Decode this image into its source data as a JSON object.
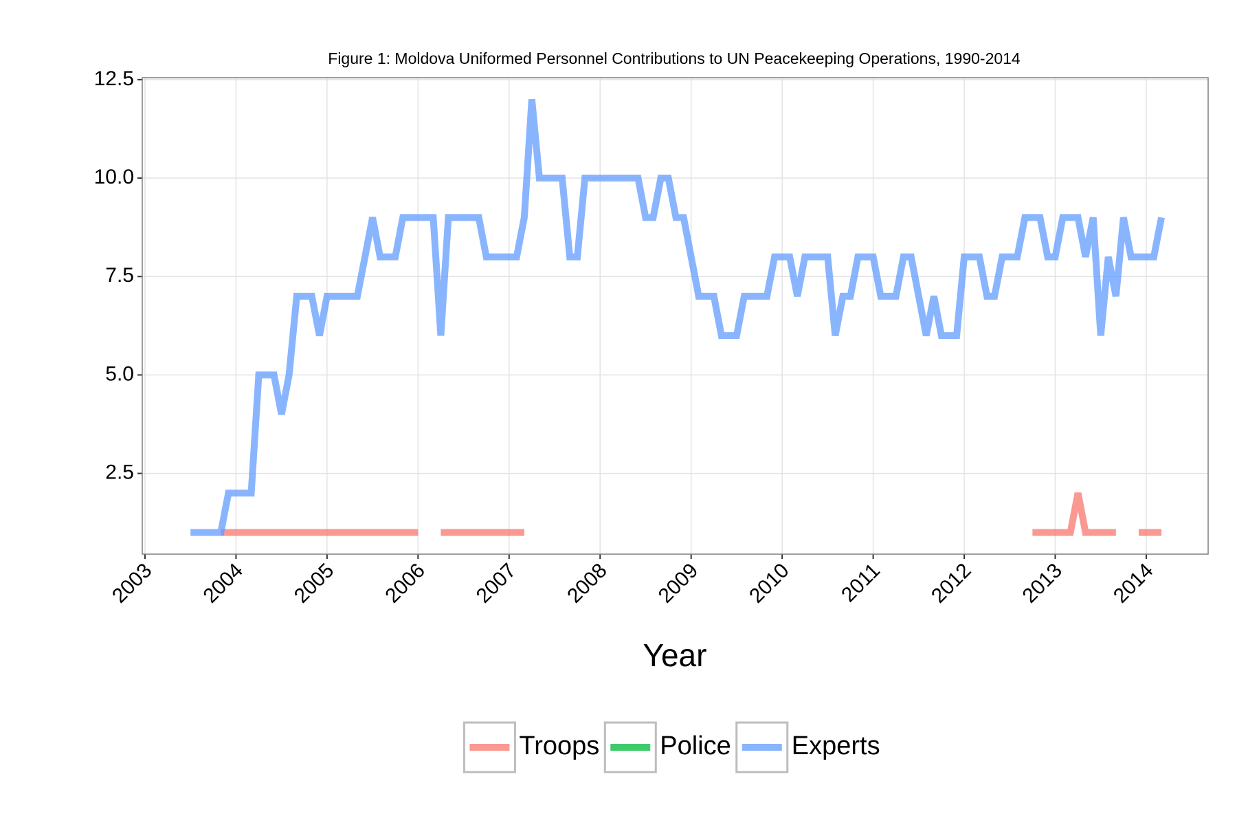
{
  "chart_data": {
    "type": "line",
    "title": "Figure 1: Moldova Uniformed Personnel Contributions to UN Peacekeeping Operations, 1990-2014",
    "xlabel": "Year",
    "x": [
      2003.5,
      2003.583,
      2003.667,
      2003.75,
      2003.833,
      2003.917,
      2004,
      2004.083,
      2004.167,
      2004.25,
      2004.333,
      2004.417,
      2004.5,
      2004.583,
      2004.667,
      2004.75,
      2004.833,
      2004.917,
      2005,
      2005.083,
      2005.167,
      2005.25,
      2005.333,
      2005.417,
      2005.5,
      2005.583,
      2005.667,
      2005.75,
      2005.833,
      2005.917,
      2006,
      2006.083,
      2006.167,
      2006.25,
      2006.333,
      2006.417,
      2006.5,
      2006.583,
      2006.667,
      2006.75,
      2006.833,
      2006.917,
      2007,
      2007.083,
      2007.167,
      2007.25,
      2007.333,
      2007.417,
      2007.5,
      2007.583,
      2007.667,
      2007.75,
      2007.833,
      2007.917,
      2008,
      2008.083,
      2008.167,
      2008.25,
      2008.333,
      2008.417,
      2008.5,
      2008.583,
      2008.667,
      2008.75,
      2008.833,
      2008.917,
      2009,
      2009.083,
      2009.167,
      2009.25,
      2009.333,
      2009.417,
      2009.5,
      2009.583,
      2009.667,
      2009.75,
      2009.833,
      2009.917,
      2010,
      2010.083,
      2010.167,
      2010.25,
      2010.333,
      2010.417,
      2010.5,
      2010.583,
      2010.667,
      2010.75,
      2010.833,
      2010.917,
      2011,
      2011.083,
      2011.167,
      2011.25,
      2011.333,
      2011.417,
      2011.5,
      2011.583,
      2011.667,
      2011.75,
      2011.833,
      2011.917,
      2012,
      2012.083,
      2012.167,
      2012.25,
      2012.333,
      2012.417,
      2012.5,
      2012.583,
      2012.667,
      2012.75,
      2012.833,
      2012.917,
      2013,
      2013.083,
      2013.167,
      2013.25,
      2013.333,
      2013.417,
      2013.5,
      2013.583,
      2013.667,
      2013.75,
      2013.833,
      2013.917,
      2014,
      2014.083,
      2014.167
    ],
    "series": [
      {
        "name": "Troops",
        "color": "#F8766D",
        "values": [
          null,
          null,
          null,
          null,
          1,
          1,
          1,
          1,
          1,
          1,
          1,
          1,
          1,
          1,
          1,
          1,
          1,
          1,
          1,
          1,
          1,
          1,
          1,
          1,
          1,
          1,
          1,
          1,
          1,
          1,
          1,
          null,
          null,
          1,
          1,
          1,
          1,
          1,
          1,
          1,
          1,
          1,
          1,
          1,
          1,
          null,
          null,
          null,
          null,
          null,
          null,
          null,
          null,
          null,
          null,
          null,
          null,
          null,
          null,
          null,
          null,
          null,
          null,
          null,
          null,
          null,
          null,
          null,
          null,
          null,
          null,
          null,
          null,
          null,
          null,
          null,
          null,
          null,
          null,
          null,
          null,
          null,
          null,
          null,
          null,
          null,
          null,
          null,
          null,
          null,
          null,
          null,
          null,
          null,
          null,
          null,
          null,
          null,
          null,
          null,
          null,
          null,
          null,
          null,
          null,
          null,
          null,
          null,
          null,
          null,
          null,
          1,
          1,
          1,
          1,
          1,
          1,
          2,
          1,
          1,
          1,
          1,
          1,
          null,
          null,
          1,
          1,
          1,
          1
        ]
      },
      {
        "name": "Police",
        "color": "#00BA38",
        "values": [
          null,
          null,
          null,
          null,
          null,
          null,
          null,
          null,
          null,
          null,
          null,
          null,
          null,
          null,
          null,
          null,
          null,
          null,
          null,
          null,
          null,
          null,
          null,
          null,
          null,
          null,
          null,
          null,
          null,
          null,
          null,
          null,
          null,
          null,
          null,
          null,
          null,
          null,
          null,
          null,
          null,
          null,
          null,
          null,
          null,
          null,
          null,
          null,
          null,
          null,
          null,
          null,
          null,
          null,
          null,
          null,
          null,
          null,
          null,
          null,
          null,
          null,
          null,
          null,
          null,
          null,
          null,
          null,
          null,
          null,
          null,
          null,
          null,
          null,
          null,
          null,
          null,
          null,
          null,
          null,
          null,
          null,
          null,
          null,
          null,
          null,
          null,
          null,
          null,
          null,
          null,
          null,
          null,
          null,
          null,
          null,
          null,
          null,
          null,
          null,
          null,
          null,
          null,
          null,
          null,
          null,
          null,
          null,
          null,
          null,
          null,
          null,
          null,
          null,
          null,
          null,
          null,
          null,
          null,
          null,
          null,
          null,
          null,
          null,
          null,
          null,
          null,
          null,
          null
        ]
      },
      {
        "name": "Experts",
        "color": "#619CFF",
        "values": [
          1,
          1,
          1,
          1,
          1,
          2,
          2,
          2,
          2,
          5,
          5,
          5,
          4,
          5,
          7,
          7,
          7,
          6,
          7,
          7,
          7,
          7,
          7,
          8,
          9,
          8,
          8,
          8,
          9,
          9,
          9,
          9,
          9,
          6,
          9,
          9,
          9,
          9,
          9,
          8,
          8,
          8,
          8,
          8,
          9,
          12,
          10,
          10,
          10,
          10,
          8,
          8,
          10,
          10,
          10,
          10,
          10,
          10,
          10,
          10,
          9,
          9,
          10,
          10,
          9,
          9,
          8,
          7,
          7,
          7,
          6,
          6,
          6,
          7,
          7,
          7,
          7,
          8,
          8,
          8,
          7,
          8,
          8,
          8,
          8,
          6,
          7,
          7,
          8,
          8,
          8,
          7,
          7,
          7,
          8,
          8,
          7,
          6,
          7,
          6,
          6,
          6,
          8,
          8,
          8,
          7,
          7,
          8,
          8,
          8,
          9,
          9,
          9,
          8,
          8,
          9,
          9,
          9,
          8,
          9,
          6,
          8,
          7,
          9,
          8,
          8,
          8,
          8,
          9
        ]
      }
    ],
    "xlim": [
      2002.97,
      2014.68
    ],
    "xticks": [
      2003,
      2004,
      2005,
      2006,
      2007,
      2008,
      2009,
      2010,
      2011,
      2012,
      2013,
      2014
    ],
    "ylim": [
      0.45,
      12.55
    ],
    "yticks": [
      2.5,
      {
        "value": 5,
        "label": "5.0"
      },
      7.5,
      {
        "value": 10,
        "label": "10.0"
      },
      12.5
    ],
    "grid": true,
    "legend": "bottom"
  }
}
